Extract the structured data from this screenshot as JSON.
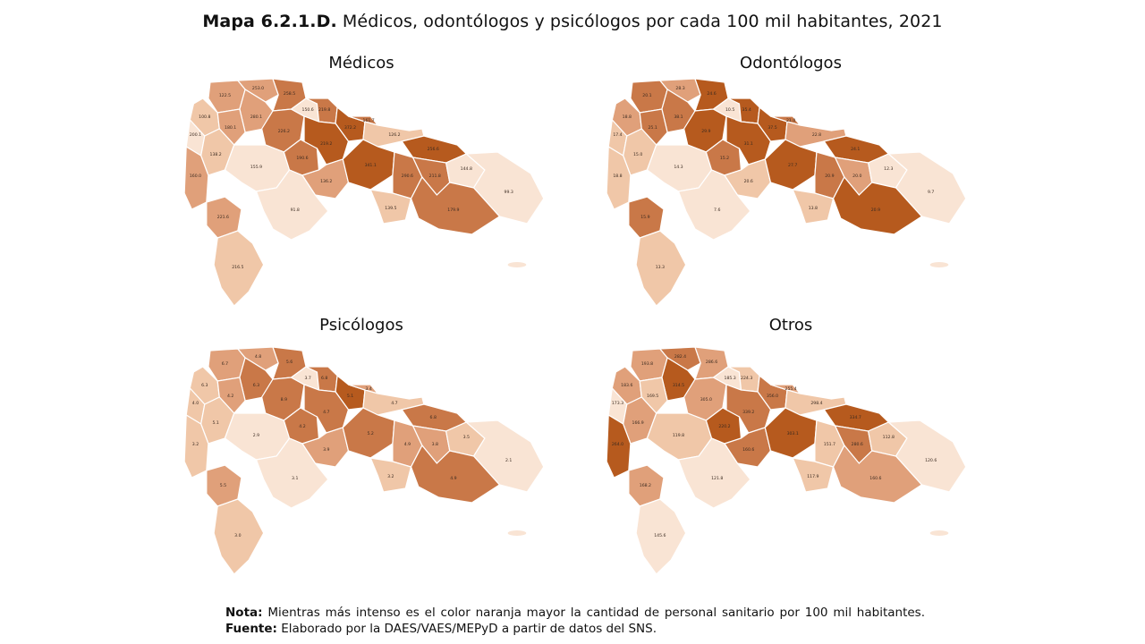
{
  "title": {
    "prefix": "Mapa 6.2.1.D.",
    "text": "Médicos, odontólogos y psicólogos por cada 100 mil habitantes, 2021"
  },
  "colors": {
    "scale": [
      "#f9e4d4",
      "#f0c7a8",
      "#e0a07a",
      "#c97848",
      "#b65a1e"
    ]
  },
  "panels": [
    {
      "label": "Médicos",
      "levels": [
        2,
        1,
        2,
        2,
        3,
        2,
        3,
        0,
        3,
        4,
        4,
        3,
        1,
        0,
        1,
        0,
        2,
        3,
        2,
        4,
        4,
        3,
        3,
        0,
        0,
        1,
        3,
        2,
        1,
        0
      ],
      "values": [
        "122.5",
        "100.8",
        "253.0",
        "280.1",
        "258.5",
        "180.1",
        "226.2",
        "150.6",
        "219.8",
        "372.2",
        "219.2",
        "161.7",
        "126.2",
        "200.1",
        "138.2",
        "155.9",
        "160.0",
        "190.6",
        "136.2",
        "341.1",
        "256.6",
        "290.6",
        "211.8",
        "144.8",
        "99.3",
        "139.5",
        "179.9",
        "221.6",
        "216.5",
        "91.8"
      ]
    },
    {
      "label": "Odontólogos",
      "levels": [
        3,
        2,
        2,
        3,
        4,
        3,
        4,
        0,
        4,
        4,
        4,
        3,
        2,
        1,
        1,
        0,
        1,
        3,
        1,
        4,
        4,
        3,
        2,
        0,
        0,
        1,
        4,
        3,
        1,
        0
      ],
      "values": [
        "20.1",
        "18.8",
        "28.3",
        "38.1",
        "24.6",
        "25.1",
        "29.9",
        "10.5",
        "35.4",
        "37.5",
        "31.1",
        "21.0",
        "22.8",
        "17.4",
        "15.0",
        "14.3",
        "18.8",
        "15.2",
        "20.6",
        "27.7",
        "24.1",
        "20.9",
        "20.0",
        "12.3",
        "9.7",
        "13.8",
        "20.9",
        "15.9",
        "13.3",
        "7.6"
      ]
    },
    {
      "label": "Psicólogos",
      "levels": [
        2,
        1,
        2,
        3,
        3,
        2,
        3,
        0,
        3,
        4,
        3,
        2,
        1,
        1,
        1,
        0,
        1,
        3,
        2,
        3,
        3,
        2,
        2,
        1,
        0,
        1,
        3,
        2,
        1,
        0
      ],
      "values": [
        "6.7",
        "6.3",
        "4.8",
        "6.3",
        "5.6",
        "4.2",
        "8.9",
        "3.7",
        "6.8",
        "5.1",
        "4.7",
        "3.4",
        "4.7",
        "4.0",
        "5.1",
        "2.9",
        "3.2",
        "4.2",
        "3.9",
        "5.2",
        "6.8",
        "4.9",
        "3.8",
        "3.5",
        "2.1",
        "3.2",
        "4.9",
        "5.5",
        "3.0",
        "3.1"
      ]
    },
    {
      "label": "Otros",
      "levels": [
        2,
        2,
        3,
        4,
        2,
        1,
        2,
        0,
        1,
        3,
        3,
        2,
        1,
        0,
        2,
        1,
        4,
        4,
        3,
        4,
        4,
        1,
        3,
        1,
        0,
        1,
        2,
        2,
        0,
        0
      ],
      "values": [
        "193.8",
        "183.6",
        "282.4",
        "314.5",
        "286.6",
        "169.5",
        "305.0",
        "185.3",
        "224.3",
        "356.0",
        "339.2",
        "255.4",
        "298.4",
        "173.3",
        "166.9",
        "119.8",
        "264.0",
        "220.2",
        "160.6",
        "303.1",
        "334.7",
        "151.7",
        "280.6",
        "112.8",
        "120.6",
        "117.9",
        "160.6",
        "168.2",
        "145.6",
        "121.8"
      ]
    }
  ],
  "note": {
    "nota_label": "Nota:",
    "nota_text": "Mientras más intenso es el color naranja mayor la cantidad de personal sanitario por 100 mil habitantes.",
    "fuente_label": "Fuente:",
    "fuente_text": "Elaborado por la DAES/VAES/MEPyD a partir de datos del SNS."
  }
}
